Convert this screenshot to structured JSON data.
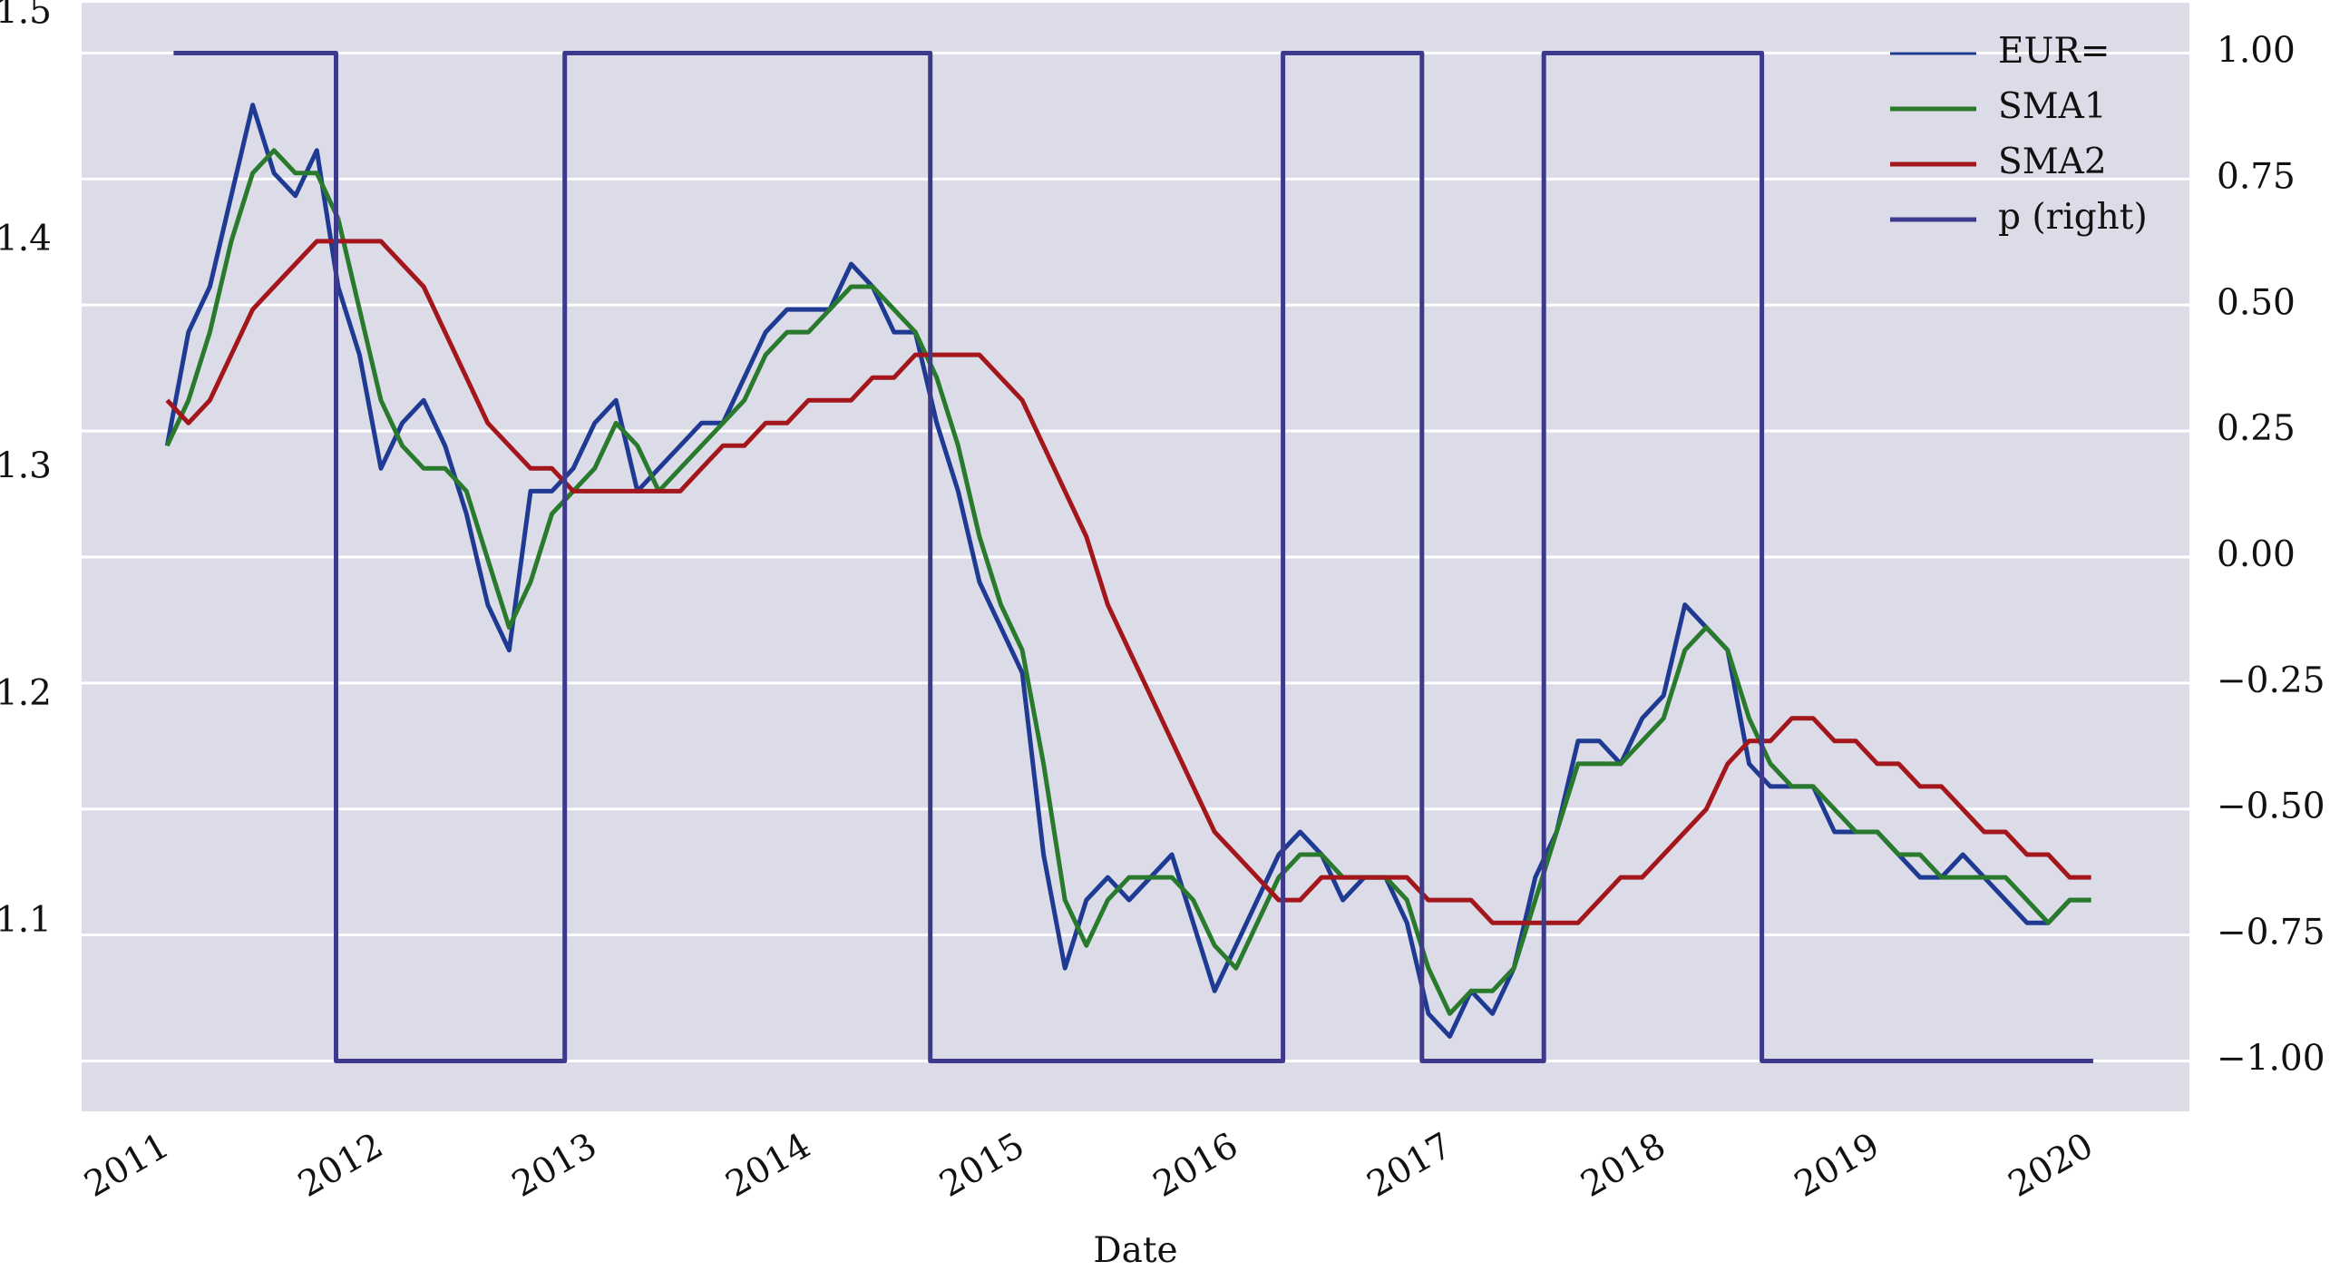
{
  "chart_data": {
    "type": "line",
    "x_label": "Date",
    "x": [
      2011.0,
      2011.1,
      2011.2,
      2011.3,
      2011.4,
      2011.5,
      2011.6,
      2011.7,
      2011.8,
      2011.9,
      2012.0,
      2012.1,
      2012.2,
      2012.3,
      2012.4,
      2012.5,
      2012.6,
      2012.7,
      2012.8,
      2012.9,
      2013.0,
      2013.1,
      2013.2,
      2013.3,
      2013.4,
      2013.5,
      2013.6,
      2013.7,
      2013.8,
      2013.9,
      2014.0,
      2014.1,
      2014.2,
      2014.3,
      2014.4,
      2014.5,
      2014.6,
      2014.7,
      2014.8,
      2014.9,
      2015.0,
      2015.1,
      2015.2,
      2015.3,
      2015.4,
      2015.5,
      2015.6,
      2015.7,
      2015.8,
      2015.9,
      2016.0,
      2016.1,
      2016.2,
      2016.3,
      2016.4,
      2016.5,
      2016.6,
      2016.7,
      2016.8,
      2016.9,
      2017.0,
      2017.1,
      2017.2,
      2017.3,
      2017.4,
      2017.5,
      2017.6,
      2017.7,
      2017.8,
      2017.9,
      2018.0,
      2018.1,
      2018.2,
      2018.3,
      2018.4,
      2018.5,
      2018.6,
      2018.7,
      2018.8,
      2018.9,
      2019.0,
      2019.1,
      2019.2,
      2019.3,
      2019.4,
      2019.5,
      2019.6,
      2019.7,
      2019.8,
      2019.9,
      2020.0
    ],
    "series": [
      {
        "name": "EUR=",
        "color": "#1f3a93",
        "axis": "y",
        "values": [
          1.31,
          1.36,
          1.38,
          1.42,
          1.46,
          1.43,
          1.42,
          1.44,
          1.38,
          1.35,
          1.3,
          1.32,
          1.33,
          1.31,
          1.28,
          1.24,
          1.22,
          1.29,
          1.29,
          1.3,
          1.32,
          1.33,
          1.29,
          1.3,
          1.31,
          1.32,
          1.32,
          1.34,
          1.36,
          1.37,
          1.37,
          1.37,
          1.39,
          1.38,
          1.36,
          1.36,
          1.32,
          1.29,
          1.25,
          1.23,
          1.21,
          1.13,
          1.08,
          1.11,
          1.12,
          1.11,
          1.12,
          1.13,
          1.1,
          1.07,
          1.09,
          1.11,
          1.13,
          1.14,
          1.13,
          1.11,
          1.12,
          1.12,
          1.1,
          1.06,
          1.05,
          1.07,
          1.06,
          1.08,
          1.12,
          1.14,
          1.18,
          1.18,
          1.17,
          1.19,
          1.2,
          1.24,
          1.23,
          1.22,
          1.17,
          1.16,
          1.16,
          1.16,
          1.14,
          1.14,
          1.14,
          1.13,
          1.12,
          1.12,
          1.13,
          1.12,
          1.11,
          1.1,
          1.1,
          1.11,
          1.11
        ]
      },
      {
        "name": "SMA1",
        "color": "#2a7a2e",
        "axis": "y",
        "values": [
          1.31,
          1.33,
          1.36,
          1.4,
          1.43,
          1.44,
          1.43,
          1.43,
          1.41,
          1.37,
          1.33,
          1.31,
          1.3,
          1.3,
          1.29,
          1.26,
          1.23,
          1.25,
          1.28,
          1.29,
          1.3,
          1.32,
          1.31,
          1.29,
          1.3,
          1.31,
          1.32,
          1.33,
          1.35,
          1.36,
          1.36,
          1.37,
          1.38,
          1.38,
          1.37,
          1.36,
          1.34,
          1.31,
          1.27,
          1.24,
          1.22,
          1.17,
          1.11,
          1.09,
          1.11,
          1.12,
          1.12,
          1.12,
          1.11,
          1.09,
          1.08,
          1.1,
          1.12,
          1.13,
          1.13,
          1.12,
          1.12,
          1.12,
          1.11,
          1.08,
          1.06,
          1.07,
          1.07,
          1.08,
          1.11,
          1.14,
          1.17,
          1.17,
          1.17,
          1.18,
          1.19,
          1.22,
          1.23,
          1.22,
          1.19,
          1.17,
          1.16,
          1.16,
          1.15,
          1.14,
          1.14,
          1.13,
          1.13,
          1.12,
          1.12,
          1.12,
          1.12,
          1.11,
          1.1,
          1.11,
          1.11
        ]
      },
      {
        "name": "SMA2",
        "color": "#a3161c",
        "axis": "y",
        "values": [
          1.33,
          1.32,
          1.33,
          1.35,
          1.37,
          1.38,
          1.39,
          1.4,
          1.4,
          1.4,
          1.4,
          1.39,
          1.38,
          1.36,
          1.34,
          1.32,
          1.31,
          1.3,
          1.3,
          1.29,
          1.29,
          1.29,
          1.29,
          1.29,
          1.29,
          1.3,
          1.31,
          1.31,
          1.32,
          1.32,
          1.33,
          1.33,
          1.33,
          1.34,
          1.34,
          1.35,
          1.35,
          1.35,
          1.35,
          1.34,
          1.33,
          1.31,
          1.29,
          1.27,
          1.24,
          1.22,
          1.2,
          1.18,
          1.16,
          1.14,
          1.13,
          1.12,
          1.11,
          1.11,
          1.12,
          1.12,
          1.12,
          1.12,
          1.12,
          1.11,
          1.11,
          1.11,
          1.1,
          1.1,
          1.1,
          1.1,
          1.1,
          1.11,
          1.12,
          1.12,
          1.13,
          1.14,
          1.15,
          1.17,
          1.18,
          1.18,
          1.19,
          1.19,
          1.18,
          1.18,
          1.17,
          1.17,
          1.16,
          1.16,
          1.15,
          1.14,
          1.14,
          1.13,
          1.13,
          1.12,
          1.12
        ]
      },
      {
        "name": "p (right)",
        "color": "#3d3a8c",
        "axis": "y2",
        "x": [
          2011.03,
          2011.79,
          2011.79,
          2012.86,
          2012.86,
          2014.57,
          2014.57,
          2016.22,
          2016.22,
          2016.87,
          2016.87,
          2017.44,
          2017.44,
          2018.46,
          2018.46,
          2020.01
        ],
        "values": [
          1,
          1,
          -1,
          -1,
          1,
          1,
          -1,
          -1,
          1,
          1,
          -1,
          -1,
          1,
          1,
          -1,
          -1
        ]
      }
    ],
    "xlim": [
      2010.6,
      2020.46
    ],
    "xticks": [
      2011,
      2012,
      2013,
      2014,
      2015,
      2016,
      2017,
      2018,
      2019,
      2020
    ],
    "ylim": [
      1.017,
      1.505
    ],
    "yticks": [
      1.1,
      1.2,
      1.3,
      1.4,
      1.5
    ],
    "y2lim": [
      -1.1,
      1.1
    ],
    "y2ticks": [
      {
        "value": 1,
        "label": "1.00"
      },
      {
        "value": 0.75,
        "label": "0.75"
      },
      {
        "value": 0.5,
        "label": "0.50"
      },
      {
        "value": 0.25,
        "label": "0.25"
      },
      {
        "value": 0,
        "label": "0.00"
      },
      {
        "value": -0.25,
        "label": "−0.25"
      },
      {
        "value": -0.5,
        "label": "−0.50"
      },
      {
        "value": -0.75,
        "label": "−0.75"
      },
      {
        "value": -1,
        "label": "−1.00"
      }
    ],
    "grid": "y2",
    "legend": "upper right",
    "background": "#dcdce9"
  }
}
